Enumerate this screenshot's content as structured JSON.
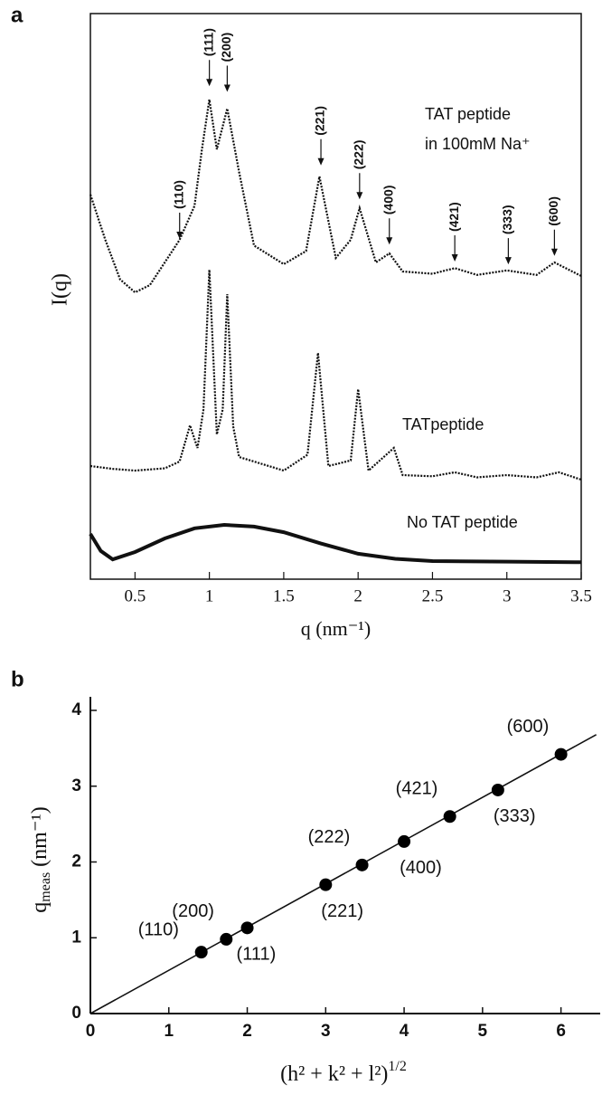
{
  "chart_data": [
    {
      "type": "line",
      "panel": "a",
      "y_label": "I(q)",
      "x_label": "q (nm⁻¹)",
      "xlim": [
        0.2,
        3.5
      ],
      "xticks": [
        0.5,
        1.0,
        1.5,
        2.0,
        2.5,
        3.0,
        3.5
      ],
      "ylim": [
        0,
        100
      ],
      "series": [
        {
          "label": [
            "TAT peptide",
            "in 100mM Na⁺"
          ],
          "color": "#111111",
          "x": [
            0.2,
            0.3,
            0.4,
            0.5,
            0.6,
            0.7,
            0.8,
            0.9,
            0.95,
            1.0,
            1.05,
            1.12,
            1.2,
            1.3,
            1.5,
            1.65,
            1.74,
            1.85,
            1.95,
            2.01,
            2.12,
            2.21,
            2.3,
            2.5,
            2.65,
            2.8,
            3.0,
            3.2,
            3.32,
            3.5
          ],
          "values": [
            68,
            60,
            53,
            50.7,
            52,
            56,
            60,
            66,
            76,
            84.8,
            76,
            83.2,
            72,
            59,
            55.7,
            58,
            71.2,
            56.8,
            60,
            65.6,
            56,
            57.6,
            54.4,
            54,
            55,
            53.8,
            54.6,
            53.8,
            56,
            53.6
          ]
        },
        {
          "label": [
            "TATpeptide"
          ],
          "color": "#111111",
          "x": [
            0.2,
            0.35,
            0.5,
            0.7,
            0.8,
            0.87,
            0.92,
            0.96,
            1.0,
            1.05,
            1.09,
            1.12,
            1.16,
            1.2,
            1.5,
            1.66,
            1.73,
            1.8,
            1.95,
            2.0,
            2.07,
            2.24,
            2.3,
            2.5,
            2.65,
            2.8,
            3.0,
            3.2,
            3.35,
            3.5
          ],
          "values": [
            20,
            19.5,
            19.2,
            19.6,
            20.8,
            27.2,
            23.2,
            30,
            54.7,
            25.6,
            30,
            50.4,
            27,
            21.6,
            19.2,
            22,
            40,
            20,
            21,
            33.6,
            19.2,
            23.2,
            18.4,
            18.2,
            18.9,
            18,
            18.4,
            18,
            18.9,
            17.6
          ]
        },
        {
          "label": [
            "No TAT peptide"
          ],
          "color": "#111111",
          "x": [
            0.2,
            0.27,
            0.35,
            0.5,
            0.7,
            0.9,
            1.1,
            1.3,
            1.5,
            1.75,
            2.0,
            2.25,
            2.5,
            3.0,
            3.5
          ],
          "values": [
            8,
            5,
            3.5,
            4.8,
            7.2,
            9,
            9.6,
            9.3,
            8.3,
            6.3,
            4.5,
            3.6,
            3.2,
            3.1,
            3.0
          ]
        }
      ],
      "annotations": [
        {
          "text": "(110)",
          "x": 0.8,
          "y": 60
        },
        {
          "text": "(111)",
          "x": 1.0,
          "y": 87
        },
        {
          "text": "(200)",
          "x": 1.12,
          "y": 86
        },
        {
          "text": "(221)",
          "x": 1.75,
          "y": 73
        },
        {
          "text": "(222)",
          "x": 2.01,
          "y": 67
        },
        {
          "text": "(400)",
          "x": 2.21,
          "y": 59
        },
        {
          "text": "(421)",
          "x": 2.65,
          "y": 56
        },
        {
          "text": "(333)",
          "x": 3.01,
          "y": 55.5
        },
        {
          "text": "(600)",
          "x": 3.32,
          "y": 57
        }
      ]
    },
    {
      "type": "scatter",
      "panel": "b",
      "y_label": {
        "base": "q",
        "sub": "meas",
        "rest": " (nm⁻¹)"
      },
      "x_label": {
        "base": "(h² + k² + l²)",
        "sup": "1/2"
      },
      "xlim": [
        0,
        6.5
      ],
      "xticks": [
        0,
        1,
        2,
        3,
        4,
        5,
        6
      ],
      "ylim": [
        0,
        4
      ],
      "yticks": [
        0,
        1,
        2,
        3,
        4
      ],
      "color": "#000000",
      "labels": [
        "(110)",
        "(200)",
        "(111)",
        "(221)",
        "(222)",
        "(400)",
        "(421)",
        "(333)",
        "(600)"
      ],
      "x": [
        1.414,
        1.732,
        2.0,
        3.0,
        3.464,
        4.0,
        4.583,
        5.196,
        6.0
      ],
      "values": [
        0.81,
        0.98,
        1.13,
        1.7,
        1.96,
        2.27,
        2.6,
        2.95,
        3.42
      ],
      "fit_line": {
        "x": [
          0,
          6.45
        ],
        "y": [
          0,
          3.68
        ]
      }
    }
  ]
}
